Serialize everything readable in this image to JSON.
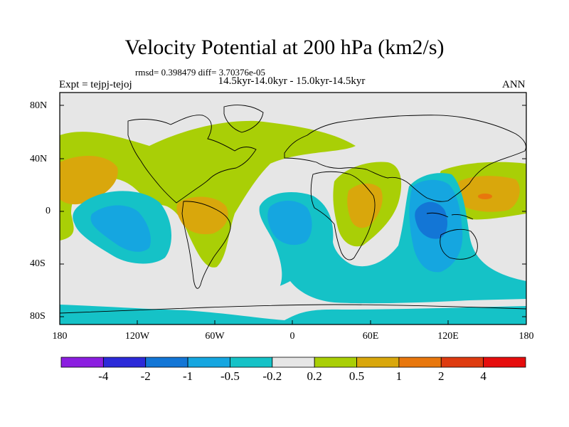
{
  "header": {
    "title": "Velocity Potential at 200 hPa (km2/s)",
    "stats": "rmsd= 0.398479 diff= 3.70376e-05",
    "subtitle": "14.5kyr-14.0kyr - 15.0kyr-14.5kyr",
    "expt": "Expt = tejpj-tejoj",
    "season": "ANN"
  },
  "map": {
    "lat_labels": [
      "80N",
      "40N",
      "0",
      "40S",
      "80S"
    ],
    "lon_labels": [
      "180",
      "120W",
      "60W",
      "0",
      "60E",
      "120E",
      "180"
    ],
    "colors": {
      "ocean_background": "#e6e6e6",
      "coastline": "#000000",
      "neg_05": "#15c2c7",
      "neg_1": "#15a6e0",
      "neg_2": "#1376d6",
      "pos_02": "#a9cf06",
      "pos_05": "#d9a70c",
      "pos_1": "#e8770d"
    }
  },
  "colorbar": {
    "labels": [
      "-4",
      "-2",
      "-1",
      "-0.5",
      "-0.2",
      "0.2",
      "0.5",
      "1",
      "2",
      "4"
    ],
    "colors": [
      "#8b1ee0",
      "#2c2ad9",
      "#1376d6",
      "#15a6e0",
      "#15c2c7",
      "#e6e6e6",
      "#a9cf06",
      "#d9a70c",
      "#e8770d",
      "#de3b10",
      "#e60d0d"
    ]
  }
}
